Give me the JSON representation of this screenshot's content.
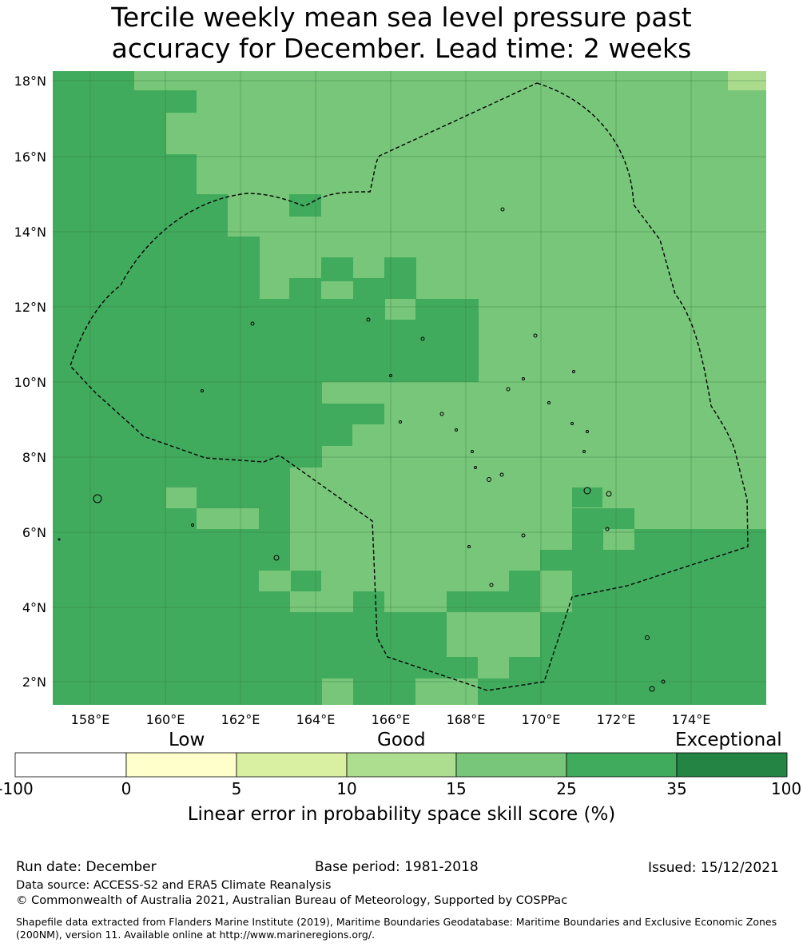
{
  "title": {
    "line1": "Tercile weekly mean sea level pressure past",
    "line2": "accuracy for December. Lead time: 2 weeks"
  },
  "map": {
    "lon_ticks": [
      "158°E",
      "160°E",
      "162°E",
      "164°E",
      "166°E",
      "168°E",
      "170°E",
      "172°E",
      "174°E"
    ],
    "lat_ticks": [
      "18°N",
      "16°N",
      "14°N",
      "12°N",
      "10°N",
      "8°N",
      "6°N",
      "4°N",
      "2°N"
    ],
    "lon_range": [
      157.0,
      176.0
    ],
    "lat_range": [
      1.4,
      18.3
    ],
    "grid": true,
    "boundary_style": "dashed black (EEZ)",
    "cell_category_colors": {
      "light": "#abdc8e",
      "mid": "#78c679",
      "dark": "#41ab5d"
    }
  },
  "colorbar": {
    "categories": [
      "Low",
      "Good",
      "Exceptional"
    ],
    "ticks": [
      "-100",
      "0",
      "5",
      "10",
      "15",
      "25",
      "35",
      "100"
    ],
    "colors": [
      "#ffffff",
      "#ffffcc",
      "#d9f0a3",
      "#addd8e",
      "#78c679",
      "#41ab5d",
      "#238443"
    ],
    "label": "Linear error in probability space skill score (%)"
  },
  "footer": {
    "run_date": "Run date: December",
    "base_period": "Base period: 1981-2018",
    "issued": "Issued: 15/12/2021",
    "data_source": "Data source: ACCESS-S2 and ERA5 Climate Reanalysis",
    "copyright": "© Commonwealth of Australia 2021, Australian Bureau of Meteorology, Supported by COSPPac",
    "shapefile": "Shapefile data extracted from Flanders Marine Institute (2019), Maritime Boundaries Geodatabase: Maritime Boundaries and Exclusive Economic Zones (200NM), version 11. Available online at http://www.marineregions.org/."
  }
}
